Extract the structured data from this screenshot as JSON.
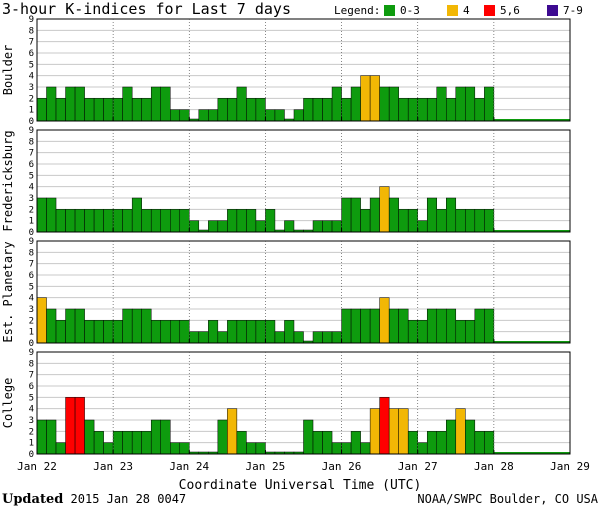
{
  "chart_data": {
    "type": "bar",
    "title": "3-hour K-indices for Last 7 days",
    "legend": {
      "label": "Legend:",
      "entries": [
        {
          "label": "0-3",
          "color": "#0e9b0e"
        },
        {
          "label": "4",
          "color": "#f2b705"
        },
        {
          "label": "5,6",
          "color": "#ff0000"
        },
        {
          "label": "7-9",
          "color": "#3d0a91"
        }
      ],
      "placement": "top-right"
    },
    "xlabel": "Coordinate Universal Time (UTC)",
    "x_ticks": [
      "Jan 22",
      "Jan 23",
      "Jan 24",
      "Jan 25",
      "Jan 26",
      "Jan 27",
      "Jan 28",
      "Jan 29"
    ],
    "ylim": [
      0,
      9
    ],
    "y_ticks": [
      "0",
      "1",
      "2",
      "3",
      "4",
      "5",
      "6",
      "7",
      "8",
      "9"
    ],
    "grid": "horizontal",
    "panels": [
      {
        "name": "Boulder",
        "values": [
          2,
          3,
          2,
          3,
          3,
          2,
          2,
          2,
          2,
          3,
          2,
          2,
          3,
          3,
          1,
          1,
          0,
          1,
          1,
          2,
          2,
          3,
          2,
          2,
          1,
          1,
          0,
          1,
          2,
          2,
          2,
          3,
          2,
          3,
          4,
          4,
          3,
          3,
          2,
          2,
          2,
          2,
          3,
          2,
          3,
          3,
          2,
          3
        ]
      },
      {
        "name": "Fredericksburg",
        "values": [
          3,
          3,
          2,
          2,
          2,
          2,
          2,
          2,
          2,
          2,
          3,
          2,
          2,
          2,
          2,
          2,
          1,
          0,
          1,
          1,
          2,
          2,
          2,
          1,
          2,
          0,
          1,
          0,
          0,
          1,
          1,
          1,
          3,
          3,
          2,
          3,
          4,
          3,
          2,
          2,
          1,
          3,
          2,
          3,
          2,
          2,
          2,
          2
        ]
      },
      {
        "name": "Est. Planetary",
        "values": [
          4,
          3,
          2,
          3,
          3,
          2,
          2,
          2,
          2,
          3,
          3,
          3,
          2,
          2,
          2,
          2,
          1,
          1,
          2,
          1,
          2,
          2,
          2,
          2,
          2,
          1,
          2,
          1,
          0,
          1,
          1,
          1,
          3,
          3,
          3,
          3,
          4,
          3,
          3,
          2,
          2,
          3,
          3,
          3,
          2,
          2,
          3,
          3
        ]
      },
      {
        "name": "College",
        "values": [
          3,
          3,
          1,
          5,
          5,
          3,
          2,
          1,
          2,
          2,
          2,
          2,
          3,
          3,
          1,
          1,
          0,
          0,
          0,
          3,
          4,
          2,
          1,
          1,
          0,
          0,
          0,
          0,
          3,
          2,
          2,
          1,
          1,
          2,
          1,
          4,
          5,
          4,
          4,
          2,
          1,
          2,
          2,
          3,
          4,
          3,
          2,
          2
        ]
      }
    ]
  },
  "footer": {
    "updated_label": "Updated",
    "updated_value": "2015 Jan 28 0047",
    "source": "NOAA/SWPC Boulder, CO USA"
  }
}
